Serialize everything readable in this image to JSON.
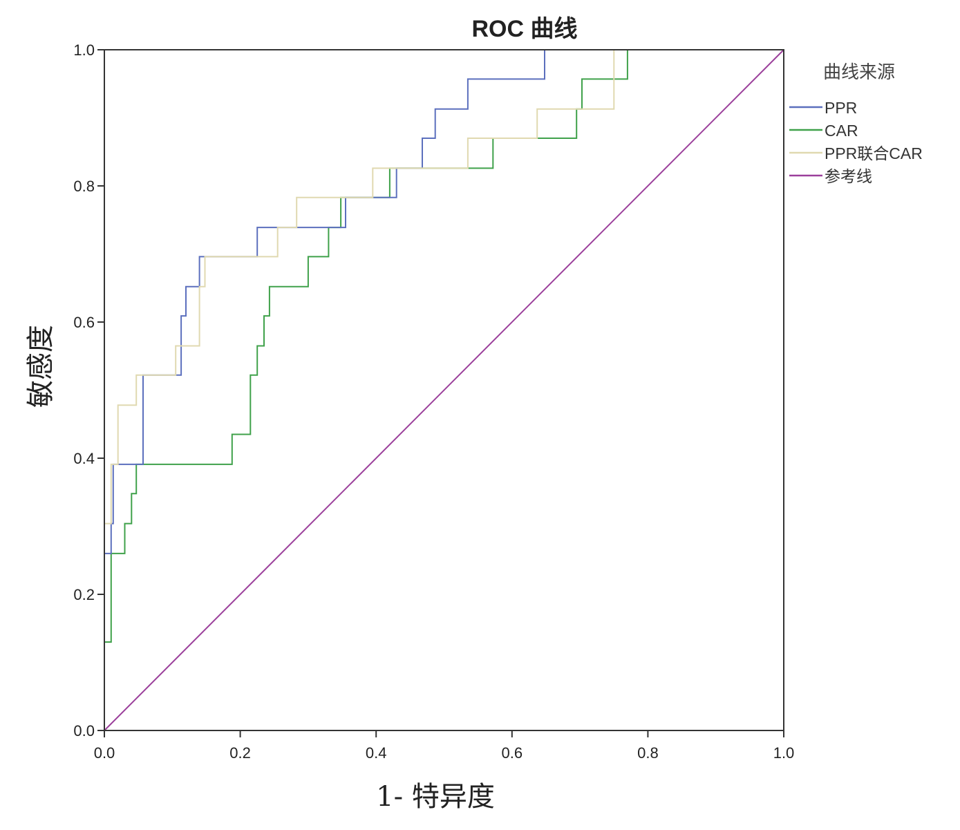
{
  "chart_data": {
    "type": "line",
    "title": "ROC 曲线",
    "xlabel": "1- 特异度",
    "ylabel": "敏感度",
    "xlim": [
      0,
      1
    ],
    "ylim": [
      0,
      1
    ],
    "x_ticks": [
      "0.0",
      "0.2",
      "0.4",
      "0.6",
      "0.8",
      "1.0"
    ],
    "y_ticks": [
      "0.0",
      "0.2",
      "0.4",
      "0.6",
      "0.8",
      "1.0"
    ],
    "legend": {
      "title": "曲线来源",
      "placement": "right"
    },
    "series": [
      {
        "name": "PPR",
        "color": "#5b6fbd",
        "points": [
          [
            0,
            0
          ],
          [
            0,
            0.26
          ],
          [
            0.01,
            0.26
          ],
          [
            0.01,
            0.304
          ],
          [
            0.013,
            0.304
          ],
          [
            0.013,
            0.391
          ],
          [
            0.057,
            0.391
          ],
          [
            0.057,
            0.522
          ],
          [
            0.113,
            0.522
          ],
          [
            0.113,
            0.609
          ],
          [
            0.12,
            0.609
          ],
          [
            0.12,
            0.652
          ],
          [
            0.14,
            0.652
          ],
          [
            0.14,
            0.696
          ],
          [
            0.225,
            0.696
          ],
          [
            0.225,
            0.739
          ],
          [
            0.355,
            0.739
          ],
          [
            0.355,
            0.783
          ],
          [
            0.43,
            0.783
          ],
          [
            0.43,
            0.826
          ],
          [
            0.468,
            0.826
          ],
          [
            0.468,
            0.87
          ],
          [
            0.487,
            0.87
          ],
          [
            0.487,
            0.913
          ],
          [
            0.535,
            0.913
          ],
          [
            0.535,
            0.957
          ],
          [
            0.648,
            0.957
          ],
          [
            0.648,
            1
          ],
          [
            1,
            1
          ]
        ]
      },
      {
        "name": "CAR",
        "color": "#3fa14a",
        "points": [
          [
            0,
            0
          ],
          [
            0,
            0.13
          ],
          [
            0.01,
            0.13
          ],
          [
            0.01,
            0.26
          ],
          [
            0.03,
            0.26
          ],
          [
            0.03,
            0.304
          ],
          [
            0.04,
            0.304
          ],
          [
            0.04,
            0.348
          ],
          [
            0.047,
            0.348
          ],
          [
            0.047,
            0.391
          ],
          [
            0.188,
            0.391
          ],
          [
            0.188,
            0.435
          ],
          [
            0.215,
            0.435
          ],
          [
            0.215,
            0.522
          ],
          [
            0.225,
            0.522
          ],
          [
            0.225,
            0.565
          ],
          [
            0.235,
            0.565
          ],
          [
            0.235,
            0.609
          ],
          [
            0.243,
            0.609
          ],
          [
            0.243,
            0.652
          ],
          [
            0.3,
            0.652
          ],
          [
            0.3,
            0.696
          ],
          [
            0.33,
            0.696
          ],
          [
            0.33,
            0.739
          ],
          [
            0.348,
            0.739
          ],
          [
            0.348,
            0.783
          ],
          [
            0.42,
            0.783
          ],
          [
            0.42,
            0.826
          ],
          [
            0.572,
            0.826
          ],
          [
            0.572,
            0.87
          ],
          [
            0.695,
            0.87
          ],
          [
            0.695,
            0.913
          ],
          [
            0.703,
            0.913
          ],
          [
            0.703,
            0.957
          ],
          [
            0.77,
            0.957
          ],
          [
            0.77,
            1
          ],
          [
            1,
            1
          ]
        ]
      },
      {
        "name": "PPR联合CAR",
        "color": "#e0d9b0",
        "points": [
          [
            0,
            0
          ],
          [
            0,
            0.304
          ],
          [
            0.01,
            0.304
          ],
          [
            0.01,
            0.391
          ],
          [
            0.02,
            0.391
          ],
          [
            0.02,
            0.478
          ],
          [
            0.047,
            0.478
          ],
          [
            0.047,
            0.522
          ],
          [
            0.105,
            0.522
          ],
          [
            0.105,
            0.565
          ],
          [
            0.14,
            0.565
          ],
          [
            0.14,
            0.652
          ],
          [
            0.148,
            0.652
          ],
          [
            0.148,
            0.696
          ],
          [
            0.255,
            0.696
          ],
          [
            0.255,
            0.739
          ],
          [
            0.283,
            0.739
          ],
          [
            0.283,
            0.783
          ],
          [
            0.395,
            0.783
          ],
          [
            0.395,
            0.826
          ],
          [
            0.535,
            0.826
          ],
          [
            0.535,
            0.87
          ],
          [
            0.637,
            0.87
          ],
          [
            0.637,
            0.913
          ],
          [
            0.75,
            0.913
          ],
          [
            0.75,
            1
          ],
          [
            1,
            1
          ]
        ]
      },
      {
        "name": "参考线",
        "color": "#9b3f9b",
        "points": [
          [
            0,
            0
          ],
          [
            1,
            1
          ]
        ]
      }
    ]
  }
}
